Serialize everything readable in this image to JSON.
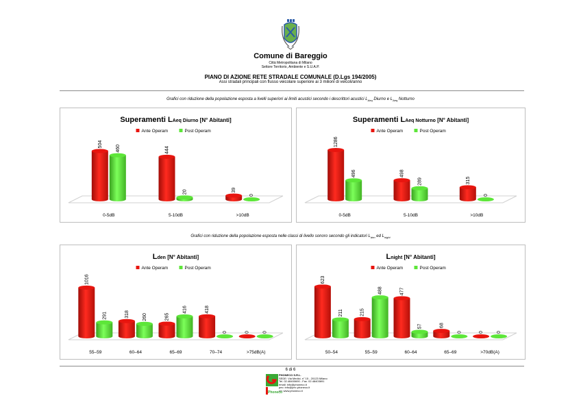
{
  "header": {
    "city": "Comune di Bareggio",
    "line1": "Città Metropolitana di Milano",
    "line2": "Settore Territorio, Ambiente e S.U.A.P.",
    "plan_title": "PIANO DI AZIONE RETE STRADALE COMUNALE (D.Lgs 194/2005)",
    "plan_subtitle": "Assi stradali principali con flusso veicolare superiore ai 3 milioni di veicoli/anno"
  },
  "captions": {
    "top_a": "Grafici con riduzione della popolazione esposta a livelli superiori ai limiti acustici secondo i descrittori acustici L",
    "top_sub1": "Aeq",
    "top_b": " Diurno e L",
    "top_sub2": "Aeq",
    "top_c": " Notturno",
    "bottom_a": "Grafici con riduzione della popolazione esposta nelle classi di livello sonoro secondo gli indicatori L",
    "bottom_sub1": "den",
    "bottom_b": " ed L",
    "bottom_sub2": "night"
  },
  "legend": {
    "ante": "Ante Operam",
    "post": "Post Operam"
  },
  "colors": {
    "ante": "#e8150f",
    "post": "#5de639",
    "axis": "#d0d0d0",
    "rule": "#8a8a8a"
  },
  "footer": {
    "page": "6 di 6",
    "company": "PHONECO S.R.L.",
    "lines": [
      "SEDE: Via Medici, n° 15 - 20123 Milano",
      "Tel. 02.48400690 - Fax. 02.48403691",
      "email: info@phoneco.it",
      "pec: info@pec.phoneco.it",
      "url: www.phoneco.it"
    ],
    "logo_text": "Phoneco"
  },
  "chart_data": [
    {
      "type": "bar",
      "title": "Superamenti L",
      "title_sub": "Aeq Diurno",
      "title_end": " [N° Abitanti]",
      "categories": [
        "0-5dB",
        "5-10dB",
        ">10dB"
      ],
      "series": [
        {
          "name": "Ante Operam",
          "values": [
            504,
            444,
            39
          ]
        },
        {
          "name": "Post Operam",
          "values": [
            460,
            20,
            0
          ]
        }
      ],
      "ylim": [
        0,
        600
      ]
    },
    {
      "type": "bar",
      "title": "Superamenti L",
      "title_sub": "Aeq Notturno",
      "title_end": " [N° Abitanti]",
      "categories": [
        "0-5dB",
        "5-10dB",
        ">10dB"
      ],
      "series": [
        {
          "name": "Ante Operam",
          "values": [
            1286,
            498,
            315
          ]
        },
        {
          "name": "Post Operam",
          "values": [
            496,
            289,
            0
          ]
        }
      ],
      "ylim": [
        0,
        1500
      ]
    },
    {
      "type": "bar",
      "title": "L",
      "title_sub": "den",
      "title_end": " [N° Abitanti]",
      "categories": [
        "55–59",
        "60–64",
        "65–69",
        "70–74",
        ">75dB(A)"
      ],
      "series": [
        {
          "name": "Ante Operam",
          "values": [
            1016,
            318,
            265,
            418,
            0
          ]
        },
        {
          "name": "Post Operam",
          "values": [
            291,
            260,
            416,
            0,
            0
          ]
        }
      ],
      "ylim": [
        0,
        1200
      ]
    },
    {
      "type": "bar",
      "title": "L",
      "title_sub": "night",
      "title_end": " [N° Abitanti]",
      "categories": [
        "50–54",
        "55–59",
        "60–64",
        "65–69",
        ">70dB(A)"
      ],
      "series": [
        {
          "name": "Ante Operam",
          "values": [
            623,
            215,
            477,
            68,
            0
          ]
        },
        {
          "name": "Post Operam",
          "values": [
            211,
            488,
            57,
            0,
            0
          ]
        }
      ],
      "ylim": [
        0,
        720
      ]
    }
  ]
}
